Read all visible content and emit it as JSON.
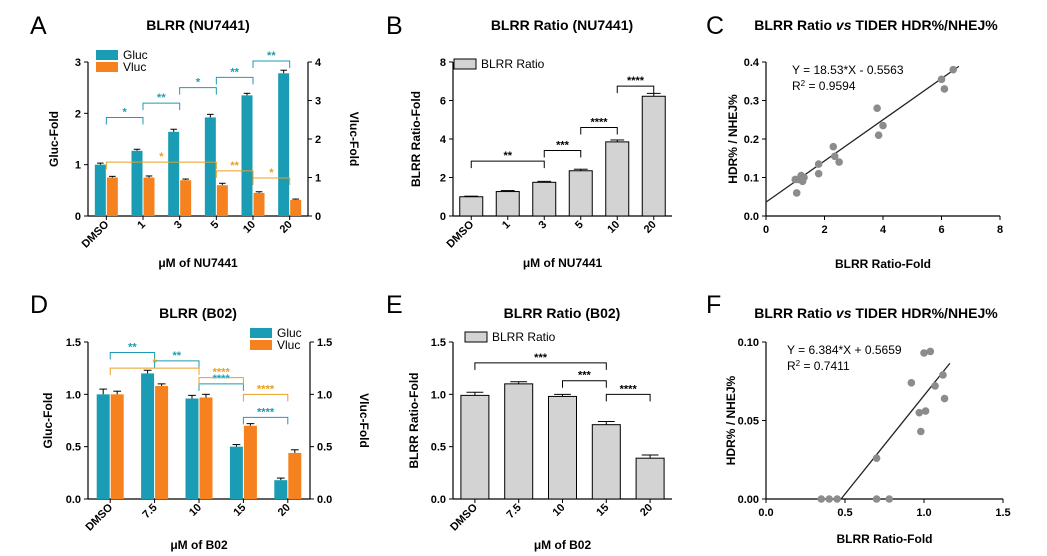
{
  "chart_data": [
    {
      "panel": "A",
      "type": "bar",
      "title": "BLRR (NU7441)",
      "xlabel": "μM of NU7441",
      "ylabel": "Gluc-Fold",
      "y2label": "Vluc-Fold",
      "categories": [
        "DMSO",
        "1",
        "3",
        "5",
        "10",
        "20"
      ],
      "ylim": [
        0,
        3
      ],
      "yticks": [
        "0",
        "1",
        "2",
        "3"
      ],
      "y2lim": [
        0,
        4
      ],
      "y2ticks": [
        "0",
        "1",
        "2",
        "3",
        "4"
      ],
      "legend_position": "top-left",
      "series": [
        {
          "name": "Gluc",
          "color": "#1b9cb5",
          "axis": "left",
          "values": [
            1.0,
            1.27,
            1.64,
            1.92,
            2.35,
            2.78
          ],
          "errors": [
            0.03,
            0.03,
            0.05,
            0.06,
            0.04,
            0.06
          ]
        },
        {
          "name": "Vluc",
          "color": "#f5821f",
          "axis": "right",
          "values": [
            1.0,
            1.0,
            0.93,
            0.8,
            0.6,
            0.42
          ],
          "errors": [
            0.03,
            0.04,
            0.03,
            0.05,
            0.03,
            0.02
          ]
        }
      ],
      "brackets": [
        {
          "from": 0,
          "to": 1,
          "level": 1.92,
          "label": "*",
          "color": "#1b9cb5"
        },
        {
          "from": 1,
          "to": 2,
          "level": 2.2,
          "label": "**",
          "color": "#1b9cb5"
        },
        {
          "from": 2,
          "to": 3,
          "level": 2.5,
          "label": "*",
          "color": "#1b9cb5"
        },
        {
          "from": 3,
          "to": 4,
          "level": 2.7,
          "label": "**",
          "color": "#1b9cb5"
        },
        {
          "from": 4,
          "to": 5,
          "level": 3.02,
          "label": "**",
          "color": "#1b9cb5"
        },
        {
          "from": 0,
          "to": 3,
          "level": 1.05,
          "label": "*",
          "color": "#e8a020"
        },
        {
          "from": 3,
          "to": 4,
          "level": 0.88,
          "label": "**",
          "color": "#e8a020"
        },
        {
          "from": 4,
          "to": 5,
          "level": 0.74,
          "label": "*",
          "color": "#e8a020"
        }
      ]
    },
    {
      "panel": "B",
      "type": "bar",
      "title": "BLRR Ratio (NU7441)",
      "xlabel": "μM of NU7441",
      "ylabel": "BLRR Ratio-Fold",
      "categories": [
        "DMSO",
        "1",
        "3",
        "5",
        "10",
        "20"
      ],
      "ylim": [
        0,
        8
      ],
      "yticks": [
        "0",
        "2",
        "4",
        "6",
        "8"
      ],
      "legend_position": "top-left",
      "series": [
        {
          "name": "BLRR Ratio",
          "color": "#d3d3d3",
          "values": [
            1.0,
            1.27,
            1.75,
            2.35,
            3.85,
            6.22
          ],
          "errors": [
            0.03,
            0.05,
            0.05,
            0.08,
            0.1,
            0.15
          ]
        }
      ],
      "brackets": [
        {
          "from": 0,
          "to": 2,
          "level": 2.85,
          "label": "**",
          "color": "#000000"
        },
        {
          "from": 2,
          "to": 3,
          "level": 3.4,
          "label": "***",
          "color": "#000000"
        },
        {
          "from": 3,
          "to": 4,
          "level": 4.6,
          "label": "****",
          "color": "#000000"
        },
        {
          "from": 4,
          "to": 5,
          "level": 6.75,
          "label": "****",
          "color": "#000000"
        }
      ]
    },
    {
      "panel": "C",
      "type": "scatter",
      "title": "BLRR Ratio vs TIDER HDR%/NHEJ%",
      "title_parts": [
        "BLRR Ratio ",
        "vs",
        " TIDER HDR%/NHEJ%"
      ],
      "xlabel": "BLRR Ratio-Fold",
      "ylabel": "HDR% / NHEJ%",
      "xlim": [
        0,
        8
      ],
      "xticks": [
        "0",
        "2",
        "4",
        "6",
        "8"
      ],
      "ylim": [
        0,
        0.4
      ],
      "yticks": [
        "0.0",
        "0.1",
        "0.2",
        "0.3",
        "0.4"
      ],
      "equation": "Y = 18.53*X - 0.5563",
      "r2_prefix": "R",
      "r2_suffix": " = 0.9594",
      "fit": {
        "slope": 0.0535,
        "intercept": 0.036
      },
      "points": [
        [
          1.0,
          0.095
        ],
        [
          1.05,
          0.06
        ],
        [
          1.1,
          0.095
        ],
        [
          1.2,
          0.105
        ],
        [
          1.25,
          0.09
        ],
        [
          1.3,
          0.1
        ],
        [
          1.8,
          0.11
        ],
        [
          1.8,
          0.135
        ],
        [
          2.3,
          0.18
        ],
        [
          2.35,
          0.155
        ],
        [
          2.5,
          0.14
        ],
        [
          3.8,
          0.28
        ],
        [
          3.85,
          0.21
        ],
        [
          4.0,
          0.235
        ],
        [
          6.0,
          0.355
        ],
        [
          6.1,
          0.33
        ],
        [
          6.4,
          0.38
        ]
      ]
    },
    {
      "panel": "D",
      "type": "bar",
      "title": "BLRR (B02)",
      "xlabel": "μM of B02",
      "ylabel": "Gluc-Fold",
      "y2label": "Vluc-Fold",
      "categories": [
        "DMSO",
        "7.5",
        "10",
        "15",
        "20"
      ],
      "ylim": [
        0,
        1.5
      ],
      "yticks": [
        "0.0",
        "0.5",
        "1.0",
        "1.5"
      ],
      "y2lim": [
        0,
        1.5
      ],
      "y2ticks": [
        "0.0",
        "0.5",
        "1.0",
        "1.5"
      ],
      "legend_position": "top-right",
      "series": [
        {
          "name": "Gluc",
          "color": "#1b9cb5",
          "axis": "left",
          "values": [
            1.0,
            1.2,
            0.96,
            0.5,
            0.18
          ],
          "errors": [
            0.05,
            0.03,
            0.03,
            0.02,
            0.02
          ]
        },
        {
          "name": "Vluc",
          "color": "#f5821f",
          "axis": "right",
          "values": [
            1.0,
            1.08,
            0.97,
            0.7,
            0.44
          ],
          "errors": [
            0.03,
            0.02,
            0.03,
            0.02,
            0.03
          ]
        }
      ],
      "brackets": [
        {
          "from": 0,
          "to": 1,
          "level": 1.4,
          "label": "**",
          "color": "#1b9cb5"
        },
        {
          "from": 1,
          "to": 2,
          "level": 1.32,
          "label": "**",
          "color": "#1b9cb5"
        },
        {
          "from": 2,
          "to": 3,
          "level": 1.1,
          "label": "****",
          "color": "#1b9cb5"
        },
        {
          "from": 3,
          "to": 4,
          "level": 0.78,
          "label": "****",
          "color": "#1b9cb5"
        },
        {
          "from": 0,
          "to": 2,
          "level": 1.25,
          "label": "*",
          "color": "#e8a020"
        },
        {
          "from": 2,
          "to": 3,
          "level": 1.16,
          "label": "****",
          "color": "#e8a020"
        },
        {
          "from": 3,
          "to": 4,
          "level": 1.0,
          "label": "****",
          "color": "#e8a020"
        }
      ]
    },
    {
      "panel": "E",
      "type": "bar",
      "title": "BLRR Ratio (B02)",
      "xlabel": "μM of B02",
      "ylabel": "BLRR Ratio-Fold",
      "categories": [
        "DMSO",
        "7.5",
        "10",
        "15",
        "20"
      ],
      "ylim": [
        0,
        1.5
      ],
      "yticks": [
        "0.0",
        "0.5",
        "1.0",
        "1.5"
      ],
      "legend_position": "top-left",
      "series": [
        {
          "name": "BLRR Ratio",
          "color": "#d3d3d3",
          "values": [
            0.99,
            1.1,
            0.98,
            0.71,
            0.39
          ],
          "errors": [
            0.03,
            0.02,
            0.02,
            0.03,
            0.03
          ]
        }
      ],
      "brackets": [
        {
          "from": 0,
          "to": 3,
          "level": 1.3,
          "label": "***",
          "color": "#000000"
        },
        {
          "from": 2,
          "to": 3,
          "level": 1.13,
          "label": "***",
          "color": "#000000"
        },
        {
          "from": 3,
          "to": 4,
          "level": 1.0,
          "label": "****",
          "color": "#000000"
        }
      ]
    },
    {
      "panel": "F",
      "type": "scatter",
      "title": "BLRR Ratio vs TIDER HDR%/NHEJ%",
      "title_parts": [
        "BLRR Ratio ",
        "vs",
        " TIDER HDR%/NHEJ%"
      ],
      "xlabel": "BLRR Ratio-Fold",
      "ylabel": "HDR% / NHEJ%",
      "xlim": [
        0,
        1.5
      ],
      "xticks": [
        "0.0",
        "0.5",
        "1.0",
        "1.5"
      ],
      "ylim": [
        0,
        0.1
      ],
      "yticks": [
        "0.00",
        "0.05",
        "0.10"
      ],
      "equation": "Y = 6.384*X + 0.5659",
      "r2_prefix": "R",
      "r2_suffix": " = 0.7411",
      "fit": {
        "slope": 0.1255,
        "intercept": -0.0596
      },
      "points": [
        [
          0.35,
          0.0
        ],
        [
          0.4,
          0.0
        ],
        [
          0.45,
          0.0
        ],
        [
          0.7,
          0.0
        ],
        [
          0.78,
          0.0
        ],
        [
          0.7,
          0.026
        ],
        [
          0.92,
          0.074
        ],
        [
          0.97,
          0.055
        ],
        [
          0.98,
          0.043
        ],
        [
          1.0,
          0.093
        ],
        [
          1.01,
          0.056
        ],
        [
          1.04,
          0.094
        ],
        [
          1.07,
          0.072
        ],
        [
          1.12,
          0.079
        ],
        [
          1.13,
          0.064
        ]
      ]
    }
  ],
  "panels": {
    "A": {
      "letter": "A"
    },
    "B": {
      "letter": "B"
    },
    "C": {
      "letter": "C"
    },
    "D": {
      "letter": "D"
    },
    "E": {
      "letter": "E"
    },
    "F": {
      "letter": "F"
    }
  }
}
